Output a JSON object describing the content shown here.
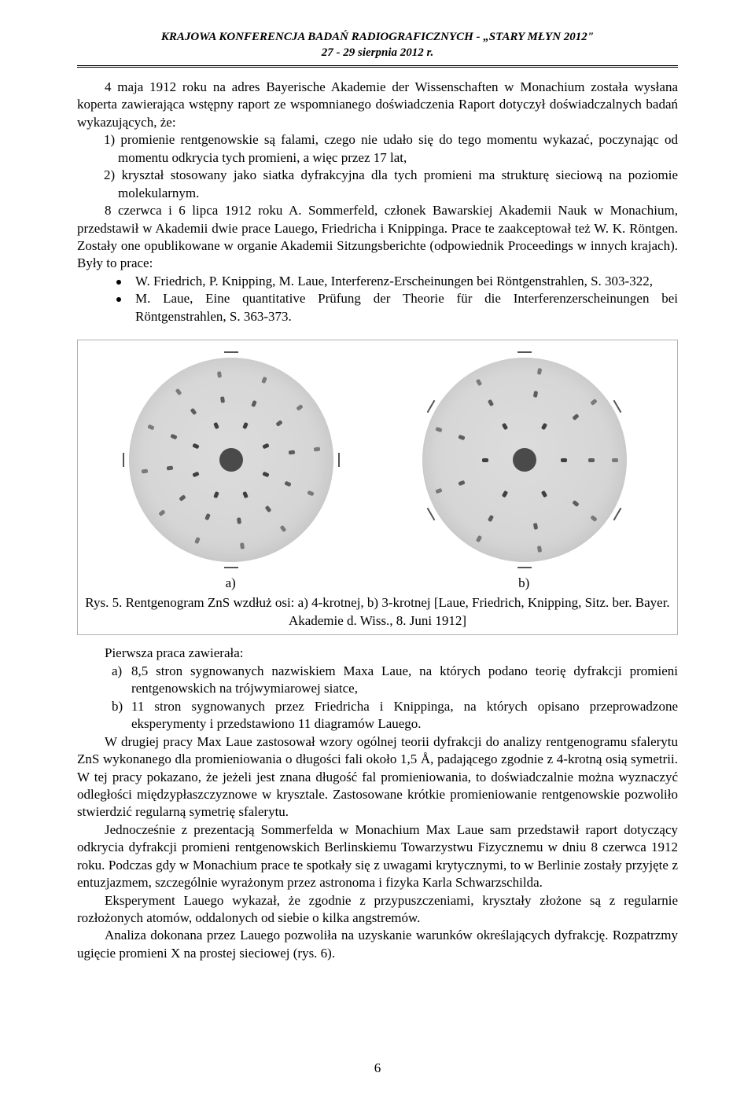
{
  "header": {
    "line1": "KRAJOWA KONFERENCJA BADAŃ RADIOGRAFICZNYCH  -  „STARY MŁYN 2012\"",
    "line2": "27 - 29 sierpnia 2012 r."
  },
  "p1": "4 maja 1912 roku na adres Bayerische Akademie der Wissenschaften w Monachium została wysłana koperta zawierająca wstępny raport ze wspomnianego doświadczenia Raport dotyczył doświadczalnych badań wykazujących, że:",
  "li1": "1) promienie rentgenowskie są falami, czego nie udało się do tego momentu wykazać, poczynając od momentu odkrycia tych promieni, a więc przez 17 lat,",
  "li2": "2) kryształ stosowany jako siatka dyfrakcyjna dla tych promieni ma strukturę sieciową na poziomie molekularnym.",
  "p2": "8 czerwca i 6 lipca 1912 roku A. Sommerfeld, członek Bawarskiej Akademii Nauk w Monachium, przedstawił w Akademii dwie prace Lauego, Friedricha i Knippinga. Prace te zaakceptował też W. K. Röntgen. Zostały one opublikowane w organie Akademii Sitzungsberichte (odpowiednik Proceedings w innych krajach). Były to prace:",
  "b1": "W. Friedrich, P. Knipping, M. Laue, Interferenz-Erscheinungen bei Röntgenstrahlen, S. 303-322,",
  "b2": "M. Laue, Eine quantitative Prüfung der Theorie für die Interferenzerscheinungen bei Röntgenstrahlen, S. 363-373.",
  "figure": {
    "label_a": "a)",
    "label_b": "b)",
    "caption": "Rys. 5. Rentgenogram ZnS wzdłuż osi: a) 4-krotnej, b) 3-krotnej [Laue, Friedrich, Knipping, Sitz. ber. Bayer. Akademie d. Wiss., 8. Juni 1912]",
    "disk_bg": "#d6d6d6",
    "center_color": "#4a4a4a",
    "spot_color": "#2d2d2d"
  },
  "p3_lead": "Pierwsza praca zawierała:",
  "la": "8,5 stron sygnowanych nazwiskiem Maxa Laue, na których podano teorię dyfrakcji promieni rentgenowskich na trójwymiarowej siatce,",
  "lb": "11 stron sygnowanych przez Friedricha i Knippinga, na których opisano przeprowadzone eksperymenty i przedstawiono 11 diagramów Lauego.",
  "p4": "W drugiej pracy Max Laue zastosował wzory ogólnej teorii dyfrakcji do analizy rentgenogramu sfalerytu ZnS wykonanego dla promieniowania o długości fali około 1,5 Å, padającego zgodnie z 4-krotną osią symetrii. W tej pracy pokazano, że jeżeli jest znana długość fal promieniowania, to doświadczalnie można wyznaczyć odległości międzypłaszczyznowe w krysztale. Zastosowane krótkie promieniowanie rentgenowskie pozwoliło stwierdzić regularną symetrię sfalerytu.",
  "p5": "Jednocześnie z prezentacją Sommerfelda w Monachium Max Laue sam przedstawił raport dotyczący odkrycia dyfrakcji promieni rentgenowskich Berlinskiemu Towarzystwu Fizycznemu w dniu 8 czerwca 1912 roku. Podczas gdy w Monachium prace te spotkały się z uwagami krytycznymi, to w Berlinie zostały przyjęte z entuzjazmem, szczególnie wyrażonym przez astronoma i fizyka Karla Schwarzschilda.",
  "p6": "Eksperyment Lauego wykazał, że zgodnie z przypuszczeniami, kryształy złożone są z regularnie rozłożonych atomów, oddalonych od siebie o kilka angstremów.",
  "p7": "Analiza dokonana przez Lauego pozwoliła na uzyskanie warunków określających dyfrakcję. Rozpatrzmy ugięcie promieni X na prostej sieciowej (rys. 6).",
  "pagenum": "6"
}
